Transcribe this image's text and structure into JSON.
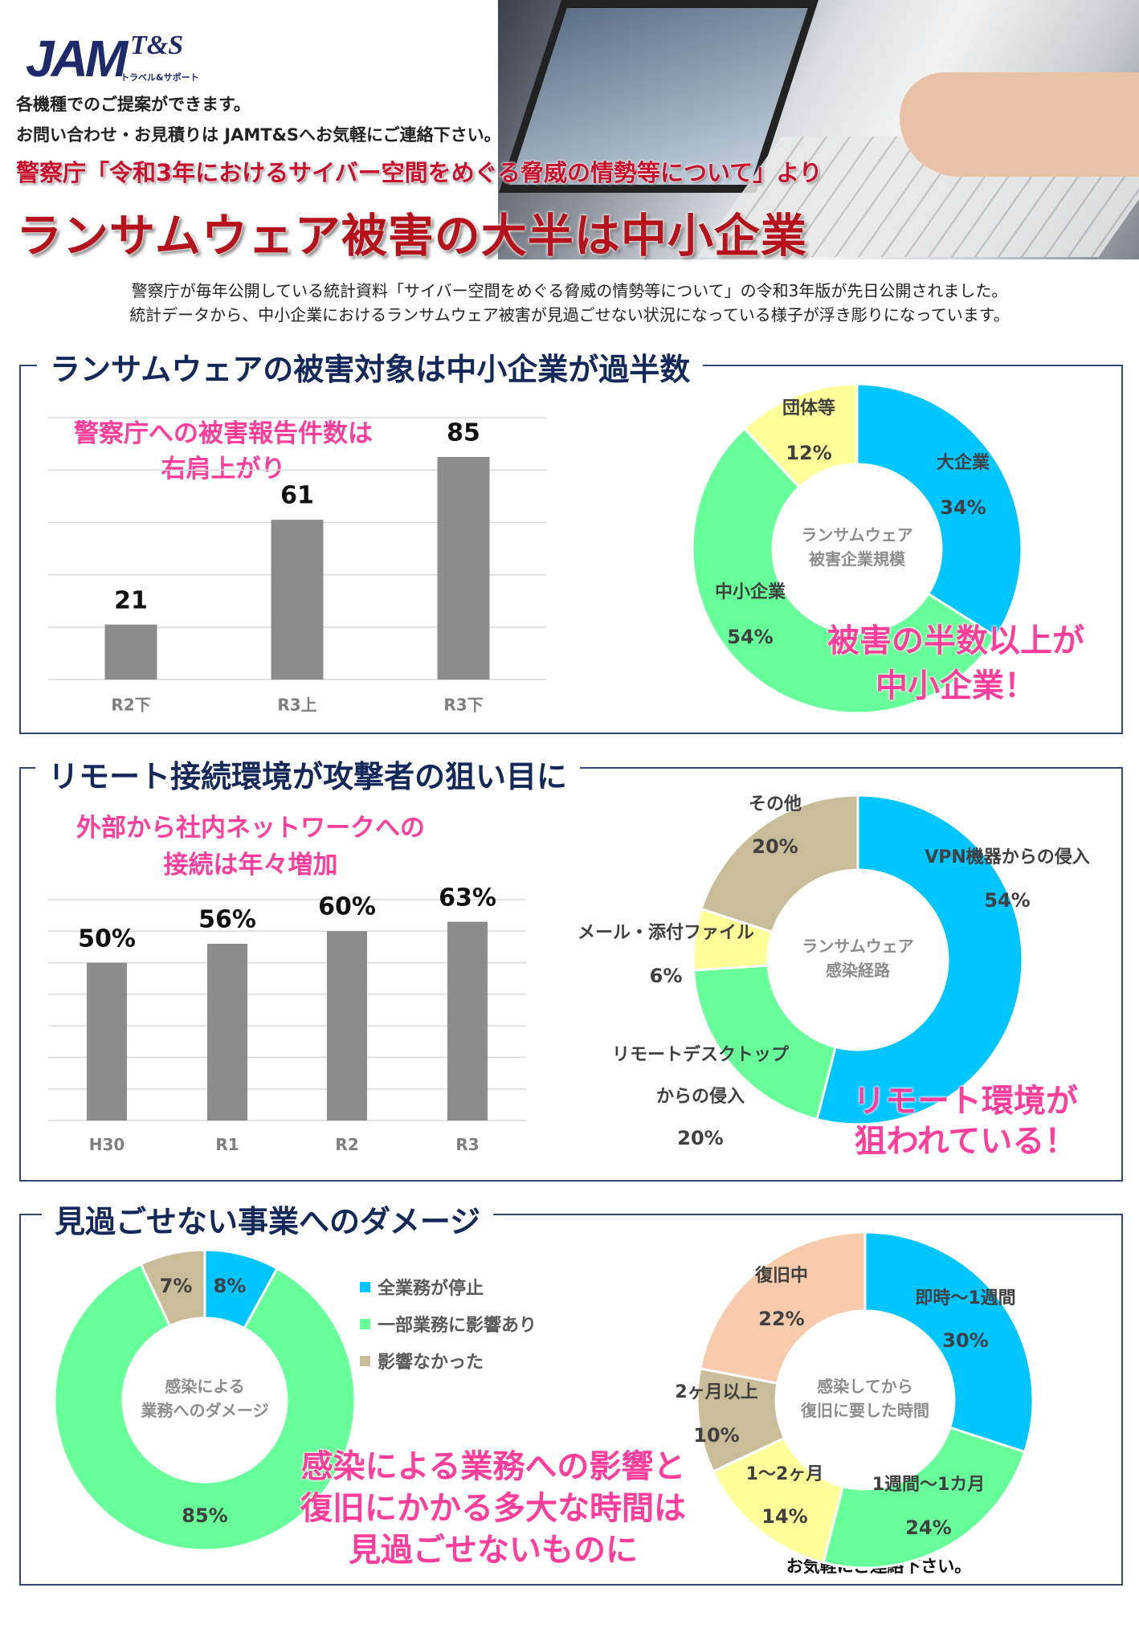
{
  "header": {
    "logo_text": "JAM",
    "logo_sub": "T&S",
    "logo_tagline": "トラベル&サポート",
    "line1": "各機種でのご提案ができます。",
    "line2": "お問い合わせ・お見積りは JAMT&Sへお気軽にご連絡下さい。",
    "subtitle": "警察庁「令和3年におけるサイバー空間をめぐる脅威の情勢等について」より",
    "title": "ランサムウェア被害の大半は中小企業"
  },
  "intro": [
    "警察庁が毎年公開している統計資料「サイバー空間をめぐる脅威の情勢等について」の令和3年版が先日公開されました。",
    "統計データから、中小企業におけるランサムウェア被害が見過ごせない状況になっている様子が浮き彫りになっています。"
  ],
  "sections": [
    {
      "title": "ランサムウェアの被害対象は中小企業が過半数",
      "bar_callout": "警察庁への被害報告件数は\n右肩上がり",
      "donut_callout": "被害の半数以上が\n中小企業！"
    },
    {
      "title": "リモート接続環境が攻撃者の狙い目に",
      "bar_callout": "外部から社内ネットワークへの\n接続は年々増加",
      "donut_callout": "リモート環境が\n狙われている！"
    },
    {
      "title": "見過ごせない事業へのダメージ",
      "callout": "感染による業務への影響と\n復旧にかかる多大な時間は\n見過ごせないものに"
    }
  ],
  "footer_contact": "お気軽にご連絡下さい。",
  "colors": {
    "cyan": "#00c5ff",
    "green": "#66ff99",
    "yellow": "#ffff99",
    "tan": "#c9bc98",
    "peach": "#f8cbad",
    "bar": "#8c8c8c",
    "pink": "#ff3d9a",
    "navy": "#14285a"
  },
  "chart_data": [
    {
      "type": "bar",
      "title": "警察庁への被害報告件数",
      "categories": [
        "R2下",
        "R3上",
        "R3下"
      ],
      "values": [
        21,
        61,
        85
      ],
      "value_labels": [
        "21",
        "61",
        "85"
      ],
      "ylim": [
        0,
        100
      ],
      "grid": true
    },
    {
      "type": "pie",
      "title": "ランサムウェア\n被害企業規模",
      "labels": [
        "大企業",
        "中小企業",
        "団体等"
      ],
      "values": [
        34,
        54,
        12
      ],
      "value_labels": [
        "34%",
        "54%",
        "12%"
      ],
      "colors": [
        "#00c5ff",
        "#66ff99",
        "#ffff99"
      ]
    },
    {
      "type": "bar",
      "title": "外部から社内ネットワークへの接続",
      "categories": [
        "H30",
        "R1",
        "R2",
        "R3"
      ],
      "values": [
        50,
        56,
        60,
        63
      ],
      "value_labels": [
        "50%",
        "56%",
        "60%",
        "63%"
      ],
      "ylim": [
        0,
        70
      ],
      "grid": true
    },
    {
      "type": "pie",
      "title": "ランサムウェア\n感染経路",
      "labels": [
        "VPN機器からの侵入",
        "リモートデスクトップ\nからの侵入",
        "メール・添付ファイル",
        "その他"
      ],
      "values": [
        54,
        20,
        6,
        20
      ],
      "value_labels": [
        "54%",
        "20%",
        "6%",
        "20%"
      ],
      "colors": [
        "#00c5ff",
        "#66ff99",
        "#ffff99",
        "#c9bc98"
      ]
    },
    {
      "type": "pie",
      "title": "感染による\n業務へのダメージ",
      "labels": [
        "全業務が停止",
        "一部業務に影響あり",
        "影響なかった"
      ],
      "values": [
        8,
        85,
        7
      ],
      "value_labels": [
        "8%",
        "85%",
        "7%"
      ],
      "colors": [
        "#00c5ff",
        "#66ff99",
        "#c9bc98"
      ],
      "legend": "right"
    },
    {
      "type": "pie",
      "title": "感染してから\n復旧に要した時間",
      "labels": [
        "即時～1週間",
        "1週間～1カ月",
        "1～2ヶ月",
        "2ヶ月以上",
        "復旧中"
      ],
      "values": [
        30,
        24,
        14,
        10,
        22
      ],
      "value_labels": [
        "30%",
        "24%",
        "14%",
        "10%",
        "22%"
      ],
      "colors": [
        "#00c5ff",
        "#66ff99",
        "#ffff99",
        "#c9bc98",
        "#f8cbad"
      ]
    }
  ]
}
